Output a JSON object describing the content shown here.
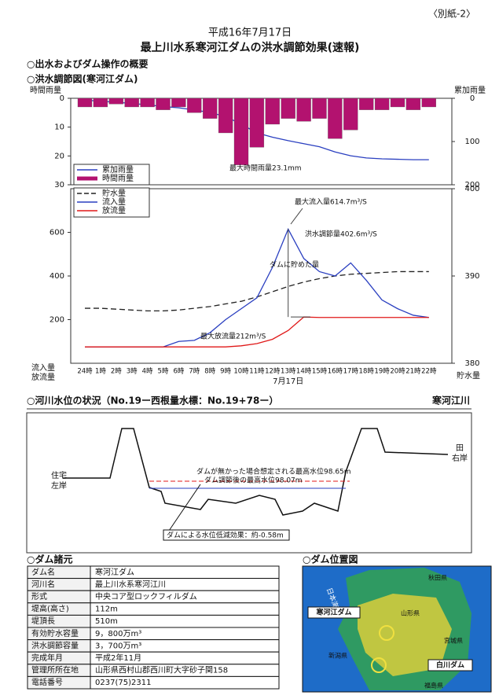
{
  "header": {
    "tag": "〈別紙-2〉",
    "date": "平成16年7月17日",
    "title": "最上川水系寒河江ダムの洪水調節効果(速報)"
  },
  "sections": [
    "○出水およびダム操作の概要",
    "○洪水調節図(寒河江ダム)"
  ],
  "chart_data": [
    {
      "type": "bar",
      "y_label": "時間雨量",
      "y2_label": "累加雨量",
      "y_inverted": true,
      "ylim": [
        0,
        30
      ],
      "yticks": [
        0,
        10,
        20,
        30
      ],
      "y2lim": [
        0,
        200
      ],
      "y2ticks": [
        0,
        100,
        200
      ],
      "annotations": [
        "最大時間雨量23.1mm"
      ],
      "series": [
        {
          "name": "累加雨量",
          "type": "line",
          "axis": "y2",
          "color": "#2a3fc0",
          "values": [
            4,
            7,
            9,
            12,
            15,
            19,
            22,
            27,
            33,
            42,
            60,
            80,
            90,
            98,
            105,
            112,
            124,
            133,
            138,
            140,
            141,
            142,
            142
          ]
        },
        {
          "name": "時間雨量",
          "type": "bar",
          "color": "#b3126f",
          "values": [
            3,
            3,
            2,
            3,
            3,
            4,
            3,
            5,
            7,
            12,
            23.1,
            17,
            9,
            7,
            8,
            7,
            14,
            11,
            4,
            4,
            3,
            4,
            3
          ]
        }
      ]
    },
    {
      "type": "line",
      "y_label": [
        "流入量",
        "放流量"
      ],
      "y2_label": "貯水量",
      "date_label": "7月17日",
      "categories": [
        "24時",
        "1時",
        "2時",
        "3時",
        "4時",
        "5時",
        "6時",
        "7時",
        "8時",
        "9時",
        "10時",
        "11時",
        "12時",
        "13時",
        "14時",
        "15時",
        "16時",
        "17時",
        "18時",
        "19時",
        "20時",
        "21時",
        "22時"
      ],
      "ylim": [
        0,
        800
      ],
      "yticks": [
        200,
        400,
        600
      ],
      "y2lim": [
        380,
        400
      ],
      "y2ticks": [
        380,
        390,
        400
      ],
      "annotations": [
        "最大流入量614.7m³/S",
        "洪水調節量402.6m³/S",
        "ダムに貯めた量",
        "最大放流量212m³/S"
      ],
      "series": [
        {
          "name": "貯水量",
          "axis": "y2",
          "color": "#222222",
          "dashed": true,
          "values": [
            386.3,
            386.3,
            386.2,
            386.1,
            386.0,
            386.0,
            386.1,
            386.3,
            386.5,
            386.8,
            387.1,
            387.6,
            388.2,
            388.8,
            389.3,
            389.7,
            390.0,
            390.2,
            390.3,
            390.4,
            390.5,
            390.5,
            390.5
          ]
        },
        {
          "name": "流入量",
          "color": "#2a3fc0",
          "values": [
            75,
            75,
            75,
            75,
            75,
            75,
            100,
            105,
            140,
            200,
            250,
            300,
            440,
            614.7,
            480,
            420,
            400,
            460,
            380,
            290,
            250,
            220,
            210
          ]
        },
        {
          "name": "放流量",
          "color": "#e01818",
          "values": [
            75,
            75,
            75,
            75,
            75,
            75,
            75,
            75,
            75,
            75,
            80,
            90,
            110,
            150,
            212,
            210,
            210,
            210,
            210,
            210,
            210,
            210,
            210
          ]
        }
      ]
    }
  ],
  "river_section": {
    "title": "○河川水位の状況（No.19ー西根量水標：No.19+78ー）",
    "river": "寒河江川",
    "left_labels": [
      "住宅",
      "左岸"
    ],
    "right_labels": [
      "田",
      "右岸"
    ],
    "annotations": [
      "ダムが無かった場合想定される最高水位98.65m",
      "ダム調節後の最高水位98.07m",
      "ダムによる水位低減効果：約-0.58m"
    ]
  },
  "dam": {
    "title": "○ダム諸元",
    "rows": [
      [
        "ダム名",
        "寒河江ダム"
      ],
      [
        "河川名",
        "最上川水系寒河江川"
      ],
      [
        "形式",
        "中央コア型ロックフィルダム"
      ],
      [
        "堤高(高さ)",
        "112m"
      ],
      [
        "堤頂長",
        "510m"
      ],
      [
        "有効貯水容量",
        "9，800万m³"
      ],
      [
        "洪水調節容量",
        "3，700万m³"
      ],
      [
        "完成年月",
        "平成2年11月"
      ],
      [
        "管理所所在地",
        "山形県西村山郡西川町大字砂子関158"
      ],
      [
        "電話番号",
        "0237(75)2311"
      ]
    ]
  },
  "map": {
    "title": "○ダム位置図",
    "labels": [
      "日本海",
      "秋田県",
      "山形県",
      "宮城県",
      "新潟県",
      "福島県"
    ],
    "dams": [
      "寒河江ダム",
      "白川ダム"
    ]
  }
}
